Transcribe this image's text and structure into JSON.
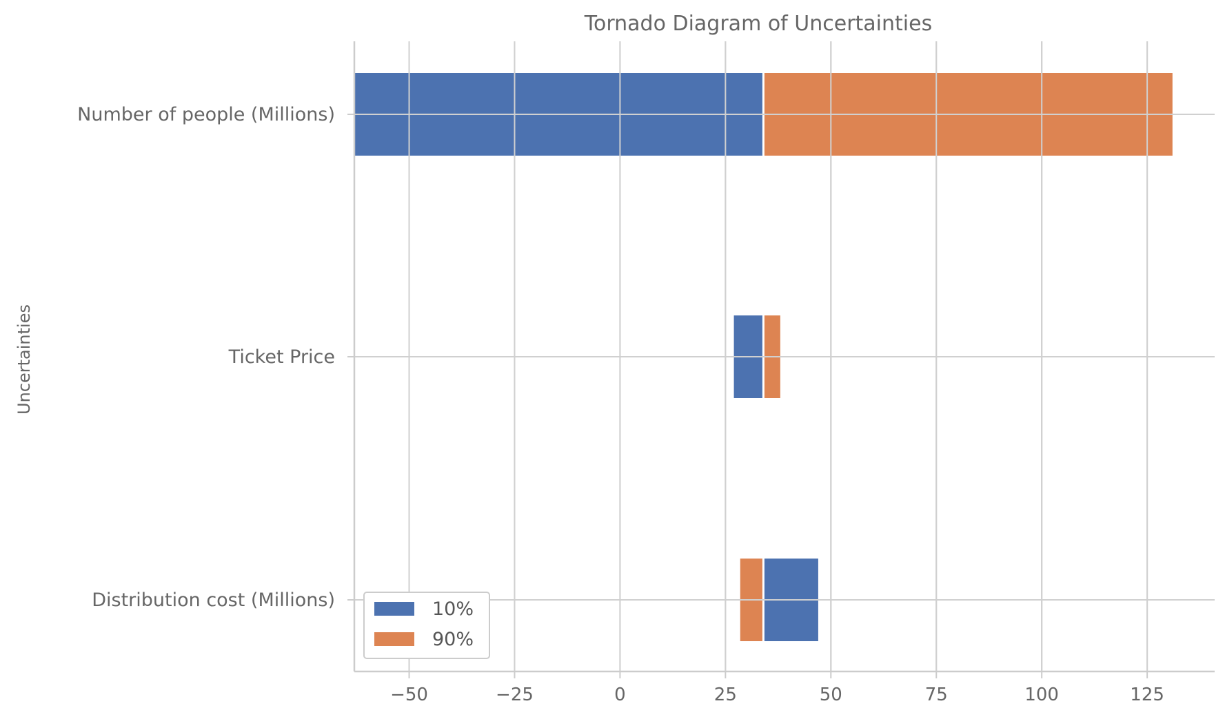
{
  "chart_data": {
    "type": "bar",
    "orientation": "horizontal",
    "title": "Tornado Diagram of Uncertainties",
    "xlabel": "",
    "ylabel": "Uncertainties",
    "categories": [
      "Number of people (Millions)",
      "Ticket Price",
      "Distribution cost (Millions)"
    ],
    "base_value": 34,
    "series": [
      {
        "name": "10%",
        "color": "#4c72b0",
        "values": [
          -63,
          27,
          47
        ]
      },
      {
        "name": "90%",
        "color": "#dd8452",
        "values": [
          131,
          38,
          28.5
        ]
      }
    ],
    "xlim": [
      -63,
      141
    ],
    "xticks": [
      -50,
      -25,
      0,
      25,
      50,
      75,
      100,
      125
    ],
    "xtick_labels": [
      "−50",
      "−25",
      "0",
      "25",
      "50",
      "75",
      "100",
      "125"
    ],
    "grid": true,
    "legend_position": "lower-left"
  }
}
